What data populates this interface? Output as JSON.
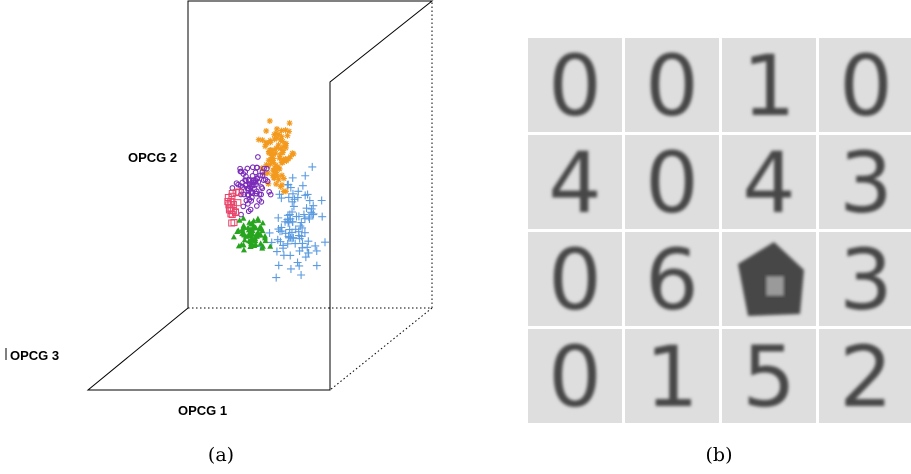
{
  "panel_a": {
    "axis_labels": {
      "vertical": "OPCG 2",
      "depth": "OPCG 3",
      "horizontal": "OPCG 1"
    },
    "caption": "(a)"
  },
  "panel_b": {
    "digits": [
      [
        "0",
        "0",
        "1",
        "0"
      ],
      [
        "4",
        "0",
        "4",
        "3"
      ],
      [
        "0",
        "6",
        null,
        "3"
      ],
      [
        "0",
        "1",
        "5",
        "2"
      ]
    ],
    "caption": "(b)"
  }
}
